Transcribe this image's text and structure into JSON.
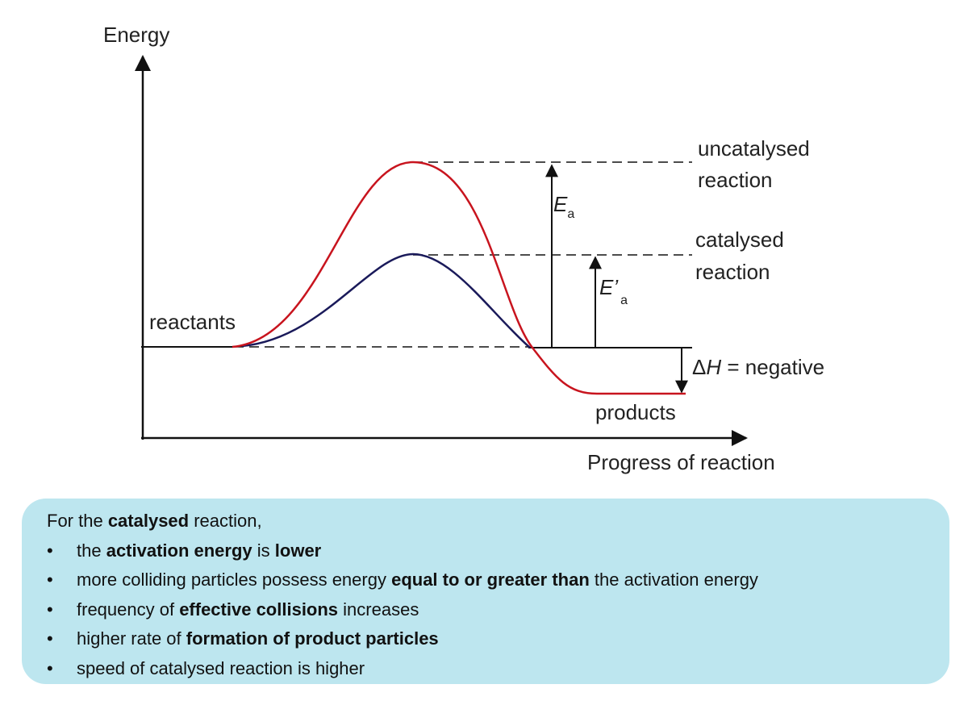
{
  "diagram": {
    "y_axis_label": "Energy",
    "x_axis_label": "Progress of reaction",
    "reactants_label": "reactants",
    "products_label": "products",
    "uncatalysed_label": [
      "uncatalysed",
      "reaction"
    ],
    "catalysed_label": [
      "catalysed",
      "reaction"
    ],
    "ea_label": {
      "main": "E",
      "sub": "a"
    },
    "ea_prime_label": {
      "main": "E’",
      "sub": "a"
    },
    "delta_h_label": {
      "delta": "Δ",
      "symbol": "H",
      "rest": " = negative"
    },
    "colors": {
      "uncatalysed_curve": "#c8141e",
      "catalysed_curve": "#1a1a5a",
      "box_background": "#bde6ef"
    }
  },
  "info_box": {
    "intro": [
      {
        "t": "For the ",
        "b": false
      },
      {
        "t": "catalysed",
        "b": true
      },
      {
        "t": " reaction,",
        "b": false
      }
    ],
    "bullets": [
      [
        {
          "t": "the ",
          "b": false
        },
        {
          "t": "activation energy",
          "b": true
        },
        {
          "t": " is ",
          "b": false
        },
        {
          "t": "lower",
          "b": true
        }
      ],
      [
        {
          "t": "more colliding particles possess energy ",
          "b": false
        },
        {
          "t": "equal to or greater than",
          "b": true
        },
        {
          "t": " the activation energy",
          "b": false
        }
      ],
      [
        {
          "t": "frequency of ",
          "b": false
        },
        {
          "t": "effective collisions",
          "b": true
        },
        {
          "t": " increases",
          "b": false
        }
      ],
      [
        {
          "t": "higher rate of ",
          "b": false
        },
        {
          "t": "formation of product particles",
          "b": true
        }
      ],
      [
        {
          "t": "speed of catalysed reaction is higher",
          "b": false
        }
      ]
    ]
  }
}
